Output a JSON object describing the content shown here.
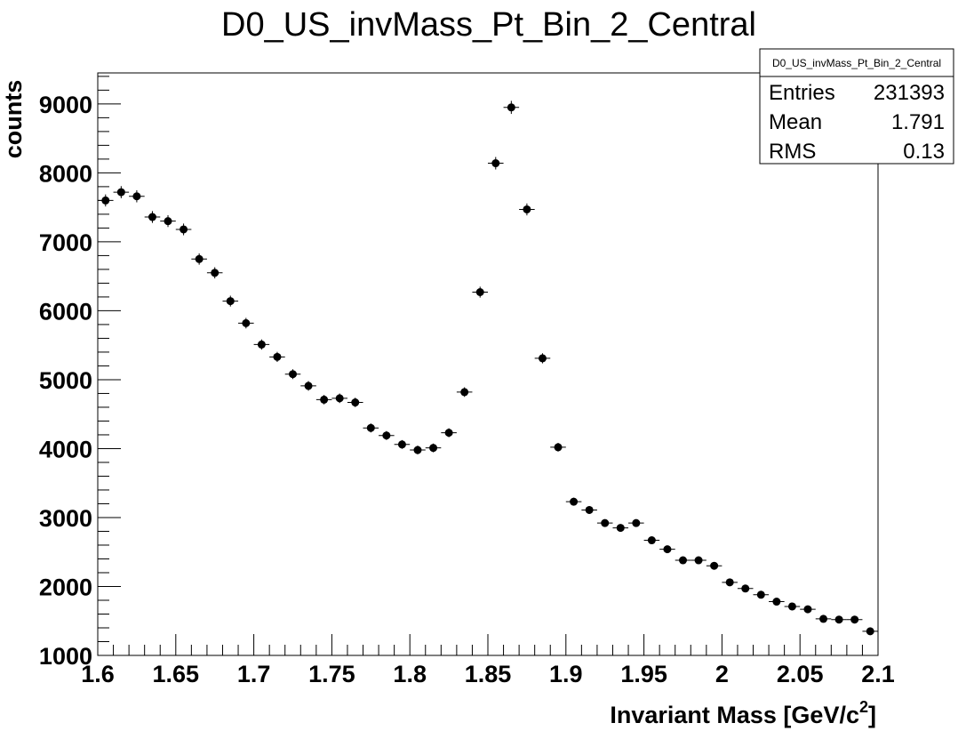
{
  "chart_data": {
    "type": "scatter",
    "title": "D0_US_invMass_Pt_Bin_2_Central",
    "xlabel": "Invariant Mass [GeV/c",
    "xlabel_superscript": "2",
    "xlabel_suffix": "]",
    "ylabel": "counts",
    "xlim": [
      1.6,
      2.1
    ],
    "ylim": [
      1000,
      9450
    ],
    "x_ticks": [
      "1.6",
      "1.65",
      "1.7",
      "1.75",
      "1.8",
      "1.85",
      "1.9",
      "1.95",
      "2",
      "2.05",
      "2.1"
    ],
    "y_ticks": [
      "1000",
      "2000",
      "3000",
      "4000",
      "5000",
      "6000",
      "7000",
      "8000",
      "9000"
    ],
    "bin_width": 0.01,
    "x": [
      1.605,
      1.615,
      1.625,
      1.635,
      1.645,
      1.655,
      1.665,
      1.675,
      1.685,
      1.695,
      1.705,
      1.715,
      1.725,
      1.735,
      1.745,
      1.755,
      1.765,
      1.775,
      1.785,
      1.795,
      1.805,
      1.815,
      1.825,
      1.835,
      1.845,
      1.855,
      1.865,
      1.875,
      1.885,
      1.895,
      1.905,
      1.915,
      1.925,
      1.935,
      1.945,
      1.955,
      1.965,
      1.975,
      1.985,
      1.995,
      2.005,
      2.015,
      2.025,
      2.035,
      2.045,
      2.055,
      2.065,
      2.075,
      2.085,
      2.095
    ],
    "y": [
      7600,
      7720,
      7660,
      7360,
      7300,
      7180,
      6750,
      6550,
      6140,
      5820,
      5510,
      5330,
      5080,
      4910,
      4710,
      4730,
      4670,
      4300,
      4190,
      4060,
      3980,
      4010,
      4230,
      4820,
      6270,
      8140,
      8950,
      7470,
      5310,
      4020,
      3230,
      3110,
      2920,
      2850,
      2920,
      2670,
      2540,
      2380,
      2380,
      2300,
      2060,
      1970,
      1880,
      1780,
      1710,
      1670,
      1530,
      1520,
      1520,
      1350
    ],
    "grid": false,
    "legend": "none",
    "marker_color": "#000000"
  },
  "stats_box": {
    "title": "D0_US_invMass_Pt_Bin_2_Central",
    "rows": [
      {
        "label": "Entries",
        "value": "231393"
      },
      {
        "label": "Mean",
        "value": "1.791"
      },
      {
        "label": "RMS",
        "value": "0.13"
      }
    ]
  }
}
